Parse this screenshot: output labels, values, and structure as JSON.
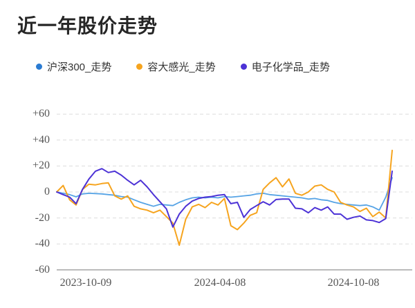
{
  "title": "近一年股价走势",
  "chart_data": {
    "type": "line",
    "title": "近一年股价走势",
    "unit": "percent_change",
    "grid": "horizontal dashed",
    "legend_position": "top",
    "ylim": [
      -60,
      60
    ],
    "y_ticks": [
      "+60",
      "+40",
      "+20",
      "0",
      "-20",
      "-40",
      "-60"
    ],
    "x_ticks": [
      "2023-10-09",
      "2024-04-08",
      "2024-10-08"
    ],
    "x": [
      "2023-10-09",
      "2023-10-16",
      "2023-10-23",
      "2023-10-30",
      "2023-11-06",
      "2023-11-13",
      "2023-11-20",
      "2023-11-27",
      "2023-12-04",
      "2023-12-11",
      "2023-12-18",
      "2023-12-25",
      "2024-01-01",
      "2024-01-08",
      "2024-01-15",
      "2024-01-22",
      "2024-01-29",
      "2024-02-05",
      "2024-02-12",
      "2024-02-19",
      "2024-02-26",
      "2024-03-04",
      "2024-03-11",
      "2024-03-18",
      "2024-03-25",
      "2024-04-01",
      "2024-04-08",
      "2024-04-15",
      "2024-04-22",
      "2024-04-29",
      "2024-05-06",
      "2024-05-13",
      "2024-05-20",
      "2024-05-27",
      "2024-06-03",
      "2024-06-10",
      "2024-06-17",
      "2024-06-24",
      "2024-07-01",
      "2024-07-08",
      "2024-07-15",
      "2024-07-22",
      "2024-07-29",
      "2024-08-05",
      "2024-08-12",
      "2024-08-19",
      "2024-08-26",
      "2024-09-02",
      "2024-09-09",
      "2024-09-16",
      "2024-09-23",
      "2024-09-30",
      "2024-10-08"
    ],
    "series": [
      {
        "name": "沪深300_走势",
        "color": "#55A3E5",
        "dot_color": "#2A7BD2",
        "line_width": 1.8,
        "values": [
          0,
          -1,
          -2,
          -3.7,
          -1.5,
          -1,
          -1.2,
          -1.5,
          -2,
          -2.5,
          -3.5,
          -4,
          -6,
          -8,
          -9.5,
          -11,
          -9.5,
          -10,
          -10.5,
          -8,
          -6,
          -4.5,
          -4,
          -4.5,
          -4,
          -4.5,
          -3.5,
          -4,
          -3.5,
          -3,
          -2.5,
          -1.5,
          -1,
          -2,
          -2.5,
          -3,
          -3.5,
          -4,
          -4.5,
          -5.5,
          -5,
          -6,
          -6.5,
          -8,
          -9,
          -9.5,
          -10,
          -10.5,
          -10,
          -11.5,
          -14,
          -4,
          11
        ]
      },
      {
        "name": "容大感光_走势",
        "color": "#F6A41E",
        "dot_color": "#F6A41E",
        "line_width": 2,
        "values": [
          0,
          5,
          -6,
          -10,
          2,
          6,
          5.5,
          6.5,
          7,
          -3,
          -5.5,
          -3,
          -11,
          -13,
          -14,
          -16,
          -14,
          -19,
          -24,
          -41,
          -21,
          -11.5,
          -9.5,
          -12,
          -8,
          -10,
          -5,
          -26,
          -29,
          -24,
          -18,
          -16,
          2,
          7,
          11,
          4,
          10,
          -1,
          -2.5,
          0,
          4.5,
          5.5,
          2,
          0,
          -8,
          -10,
          -11.5,
          -15,
          -12.5,
          -19,
          -15.5,
          -20,
          32
        ]
      },
      {
        "name": "电子化学品_走势",
        "color": "#4C32D6",
        "dot_color": "#4C32D6",
        "line_width": 2,
        "values": [
          0,
          -2,
          -4,
          -9,
          2,
          10,
          16,
          18,
          15,
          16,
          13,
          9,
          5.5,
          9,
          4,
          -2,
          -7.5,
          -13,
          -27,
          -17,
          -11,
          -7,
          -5,
          -4,
          -3.5,
          -2.5,
          -2,
          -9,
          -8,
          -19.5,
          -13.5,
          -10.5,
          -7.5,
          -10,
          -5.8,
          -5.5,
          -5.5,
          -12.5,
          -13,
          -16,
          -12,
          -14,
          -11.5,
          -17,
          -17,
          -21,
          -19.5,
          -18.5,
          -21.5,
          -22,
          -23.5,
          -20.5,
          16
        ]
      }
    ],
    "colors": {
      "grid_line": "#dcdcdc",
      "axis_line": "#888888",
      "tick_text": "#555555",
      "title_text": "#262626",
      "legend_text": "#333333"
    }
  }
}
